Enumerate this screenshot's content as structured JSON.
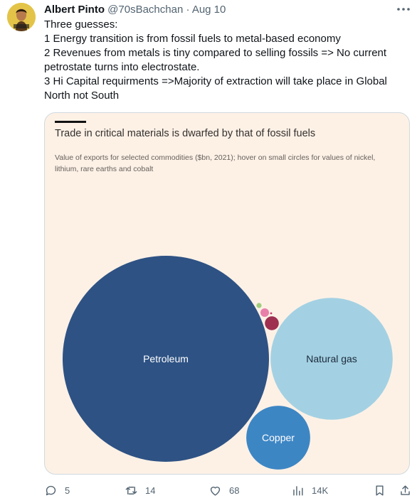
{
  "tweet": {
    "author_name": "Albert Pinto",
    "handle": "@70sBachchan",
    "separator": "·",
    "date": "Aug 10",
    "lines": [
      "Three guesses:",
      "1 Energy transition is from fossil fuels to metal-based economy",
      "2 Revenues from metals is tiny compared to selling fossils => No current petrostate turns into electrostate.",
      "3 Hi Capital requirments =>Majority of extraction will take place in Global North not South"
    ]
  },
  "card": {
    "title": "Trade in critical materials is dwarfed by that of fossil fuels",
    "subtitle": "Value of exports for selected commodities ($bn, 2021); hover on small circles for values of nickel, lithium, rare earths and cobalt"
  },
  "chart_data": {
    "type": "bubble",
    "bubbles": [
      {
        "label": "Petroleum",
        "color": "#2e5284",
        "relative_area": 1.0
      },
      {
        "label": "Natural gas",
        "color": "#a3d1e3",
        "relative_area": 0.35
      },
      {
        "label": "Copper",
        "color": "#3d86c4",
        "relative_area": 0.096
      },
      {
        "label": "",
        "color": "#9e2f50",
        "relative_area": 0.0046
      },
      {
        "label": "",
        "color": "#e77fa9",
        "relative_area": 0.0017
      },
      {
        "label": "",
        "color": "#a2cd7e",
        "relative_area": 0.0006
      },
      {
        "label": "",
        "color": "#c63b6a",
        "relative_area": 0.0001
      }
    ]
  },
  "actions": {
    "replies": "5",
    "retweets": "14",
    "likes": "68",
    "views": "14K"
  },
  "colors": {
    "text": "#0f1419",
    "secondary": "#536471",
    "card_bg": "#fdf1e6"
  }
}
